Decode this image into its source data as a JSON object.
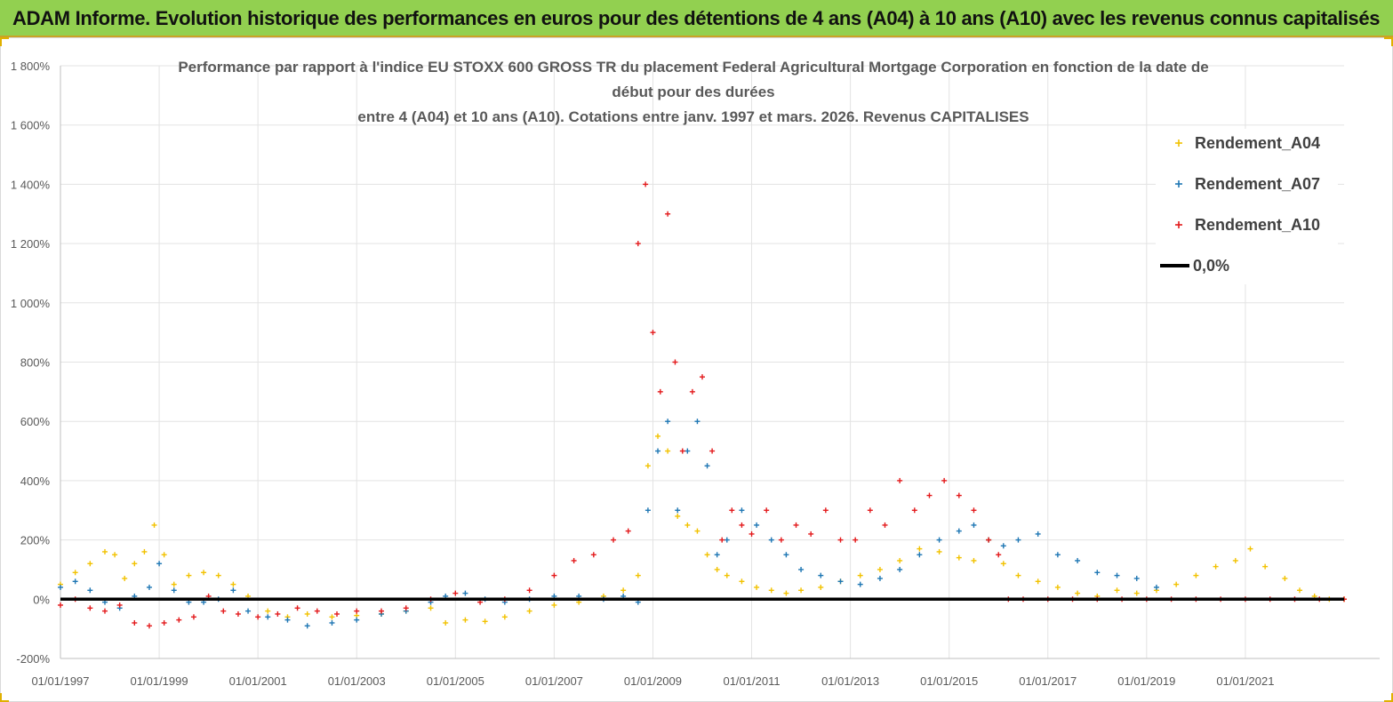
{
  "header": {
    "title": "ADAM Informe. Evolution historique des performances en euros pour des détentions de 4 ans (A04) à 10 ans (A10) avec les revenus connus capitalisés"
  },
  "chart_data": {
    "type": "scatter",
    "title_lines": [
      "Performance par rapport à l'indice EU STOXX 600 GROSS TR  du placement Federal Agricultural Mortgage Corporation en fonction de la date de",
      "début pour des durées",
      "entre 4 (A04) et 10 ans (A10). Cotations entre janv. 1997 et mars. 2026. Revenus CAPITALISES"
    ],
    "ylim": [
      -200,
      1800
    ],
    "yticks": [
      -200,
      0,
      200,
      400,
      600,
      800,
      1000,
      1200,
      1400,
      1600,
      1800
    ],
    "ytick_labels": [
      "-200%",
      "0%",
      "200%",
      "400%",
      "600%",
      "800%",
      "1 000%",
      "1 200%",
      "1 400%",
      "1 600%",
      "1 800%"
    ],
    "xlim": [
      1997.0,
      2023.0
    ],
    "xticks": [
      1997,
      1999,
      2001,
      2003,
      2005,
      2007,
      2009,
      2011,
      2013,
      2015,
      2017,
      2019,
      2021
    ],
    "xtick_labels": [
      "01/01/1997",
      "01/01/1999",
      "01/01/2001",
      "01/01/2003",
      "01/01/2005",
      "01/01/2007",
      "01/01/2009",
      "01/01/2011",
      "01/01/2013",
      "01/01/2015",
      "01/01/2017",
      "01/01/2019",
      "01/01/2021"
    ],
    "legend_position": "top-right",
    "series": [
      {
        "name": "Rendement_A04",
        "color": "#f2c200",
        "x": [
          1997.0,
          1997.3,
          1997.6,
          1997.9,
          1998.1,
          1998.3,
          1998.5,
          1998.7,
          1998.9,
          1999.1,
          1999.3,
          1999.6,
          1999.9,
          2000.2,
          2000.5,
          2000.8,
          2001.2,
          2001.6,
          2002.0,
          2002.5,
          2003.0,
          2003.5,
          2004.0,
          2004.5,
          2004.8,
          2005.2,
          2005.6,
          2006.0,
          2006.5,
          2007.0,
          2007.5,
          2008.0,
          2008.4,
          2008.7,
          2008.9,
          2009.1,
          2009.3,
          2009.5,
          2009.7,
          2009.9,
          2010.1,
          2010.3,
          2010.5,
          2010.8,
          2011.1,
          2011.4,
          2011.7,
          2012.0,
          2012.4,
          2012.8,
          2013.2,
          2013.6,
          2014.0,
          2014.4,
          2014.8,
          2015.2,
          2015.5,
          2015.8,
          2016.1,
          2016.4,
          2016.8,
          2017.2,
          2017.6,
          2018.0,
          2018.4,
          2018.8,
          2019.2,
          2019.6,
          2020.0,
          2020.4,
          2020.8,
          2021.1,
          2021.4,
          2021.8,
          2022.1,
          2022.4,
          2022.7,
          2023.0
        ],
        "values": [
          50,
          90,
          120,
          160,
          150,
          70,
          120,
          160,
          250,
          150,
          50,
          80,
          90,
          80,
          50,
          10,
          -40,
          -60,
          -50,
          -60,
          -55,
          -50,
          -40,
          -30,
          -80,
          -70,
          -75,
          -60,
          -40,
          -20,
          -10,
          10,
          30,
          80,
          450,
          550,
          500,
          280,
          250,
          230,
          150,
          100,
          80,
          60,
          40,
          30,
          20,
          30,
          40,
          60,
          80,
          100,
          130,
          170,
          160,
          140,
          130,
          200,
          120,
          80,
          60,
          40,
          20,
          10,
          30,
          20,
          30,
          50,
          80,
          110,
          130,
          170,
          110,
          70,
          30,
          10,
          0,
          0
        ]
      },
      {
        "name": "Rendement_A07",
        "color": "#1f77b4",
        "x": [
          1997.0,
          1997.3,
          1997.6,
          1997.9,
          1998.2,
          1998.5,
          1998.8,
          1999.0,
          1999.3,
          1999.6,
          1999.9,
          2000.2,
          2000.5,
          2000.8,
          2001.2,
          2001.6,
          2002.0,
          2002.5,
          2003.0,
          2003.5,
          2004.0,
          2004.5,
          2004.8,
          2005.2,
          2005.6,
          2006.0,
          2006.5,
          2007.0,
          2007.5,
          2008.0,
          2008.4,
          2008.7,
          2008.9,
          2009.1,
          2009.3,
          2009.5,
          2009.7,
          2009.9,
          2010.1,
          2010.3,
          2010.5,
          2010.8,
          2011.1,
          2011.4,
          2011.7,
          2012.0,
          2012.4,
          2012.8,
          2013.2,
          2013.6,
          2014.0,
          2014.4,
          2014.8,
          2015.2,
          2015.5,
          2015.8,
          2016.1,
          2016.4,
          2016.8,
          2017.2,
          2017.6,
          2018.0,
          2018.4,
          2018.8,
          2019.2
        ],
        "values": [
          40,
          60,
          30,
          -10,
          -30,
          10,
          40,
          120,
          30,
          -10,
          -10,
          0,
          30,
          -40,
          -60,
          -70,
          -90,
          -80,
          -70,
          -50,
          -40,
          -10,
          10,
          20,
          0,
          -10,
          0,
          10,
          10,
          0,
          10,
          -10,
          300,
          500,
          600,
          300,
          500,
          600,
          450,
          150,
          200,
          300,
          250,
          200,
          150,
          100,
          80,
          60,
          50,
          70,
          100,
          150,
          200,
          230,
          250,
          200,
          180,
          200,
          220,
          150,
          130,
          90,
          80,
          70,
          40
        ]
      },
      {
        "name": "Rendement_A10",
        "color": "#e31a1c",
        "x": [
          1997.0,
          1997.3,
          1997.6,
          1997.9,
          1998.2,
          1998.5,
          1998.8,
          1999.1,
          1999.4,
          1999.7,
          2000.0,
          2000.3,
          2000.6,
          2001.0,
          2001.4,
          2001.8,
          2002.2,
          2002.6,
          2003.0,
          2003.5,
          2004.0,
          2004.5,
          2005.0,
          2005.5,
          2006.0,
          2006.5,
          2007.0,
          2007.4,
          2007.8,
          2008.2,
          2008.5,
          2008.7,
          2008.85,
          2009.0,
          2009.15,
          2009.3,
          2009.45,
          2009.6,
          2009.8,
          2010.0,
          2010.2,
          2010.4,
          2010.6,
          2010.8,
          2011.0,
          2011.3,
          2011.6,
          2011.9,
          2012.2,
          2012.5,
          2012.8,
          2013.1,
          2013.4,
          2013.7,
          2014.0,
          2014.3,
          2014.6,
          2014.9,
          2015.2,
          2015.5,
          2015.8,
          2016.0,
          2016.2,
          2016.5,
          2017.0,
          2017.5,
          2018.0,
          2018.5,
          2019.0,
          2019.5,
          2020.0,
          2020.5,
          2021.0,
          2021.5,
          2022.0,
          2022.5,
          2023.0
        ],
        "values": [
          -20,
          0,
          -30,
          -40,
          -20,
          -80,
          -90,
          -80,
          -70,
          -60,
          10,
          -40,
          -50,
          -60,
          -50,
          -30,
          -40,
          -50,
          -40,
          -40,
          -30,
          0,
          20,
          -10,
          0,
          30,
          80,
          130,
          150,
          200,
          230,
          1200,
          1400,
          900,
          700,
          1300,
          800,
          500,
          700,
          750,
          500,
          200,
          300,
          250,
          220,
          300,
          200,
          250,
          220,
          300,
          200,
          200,
          300,
          250,
          400,
          300,
          350,
          400,
          350,
          300,
          200,
          150,
          0,
          0,
          0,
          0,
          0,
          0,
          0,
          0,
          0,
          0,
          0,
          0,
          0,
          0,
          0
        ]
      },
      {
        "name": "0,0%",
        "color": "#000000",
        "type": "line",
        "x": [
          1997.0,
          2023.0
        ],
        "values": [
          0,
          0
        ]
      }
    ]
  }
}
